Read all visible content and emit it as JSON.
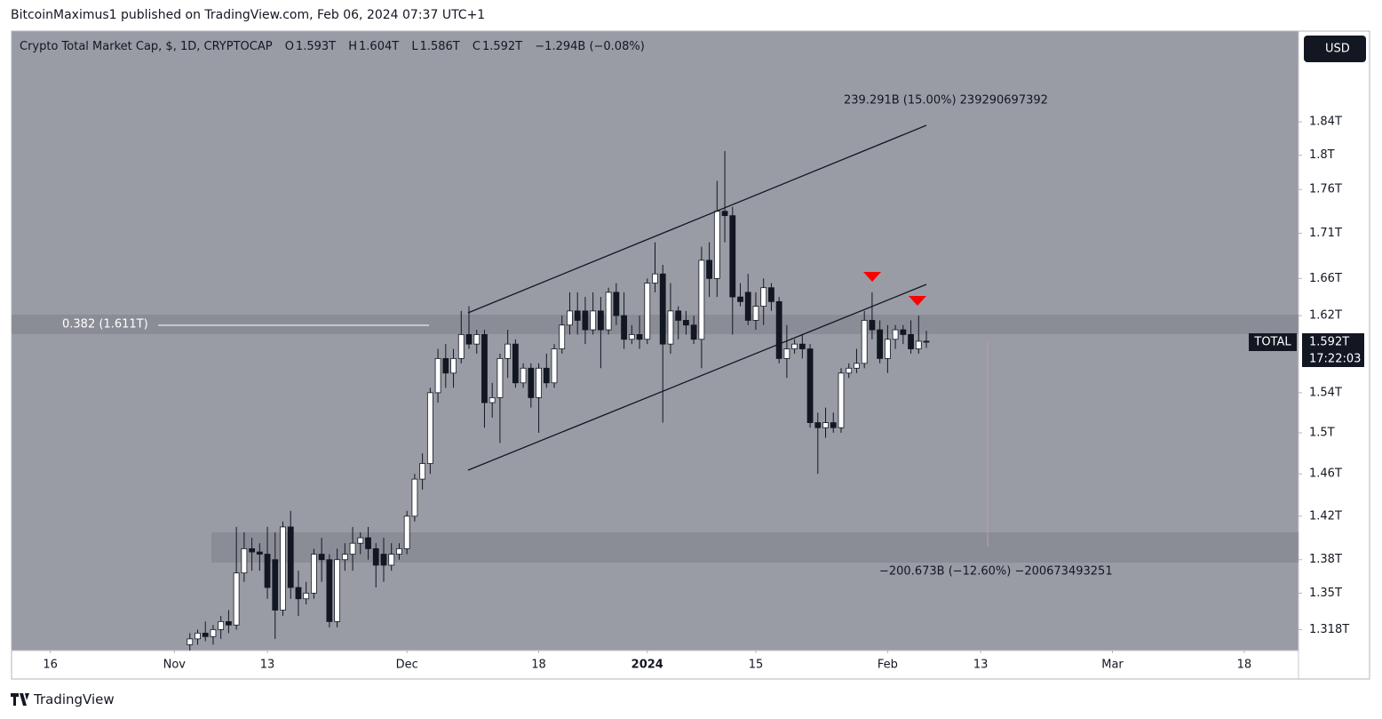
{
  "header": {
    "publisher": "BitcoinMaximus1 published on TradingView.com, Feb 06, 2024 07:37 UTC+1",
    "footer": "TradingView"
  },
  "chart_data": {
    "type": "candlestick",
    "legend": {
      "title": "Crypto Total Market Cap, $, 1D, CRYPTOCAP",
      "items": [
        {
          "label": "O",
          "value": "1.593T"
        },
        {
          "label": "H",
          "value": "1.604T"
        },
        {
          "label": "L",
          "value": "1.586T"
        },
        {
          "label": "C",
          "value": "1.592T"
        }
      ],
      "change": "−1.294B (−0.08%)"
    },
    "currency": "USD",
    "symbol_tag": "TOTAL",
    "countdown": "17:22:03",
    "annotations": [
      "239.291B (15.00%) 239290697392",
      "−200.673B (−12.60%) −200673493251",
      "0.382 (1.611T)"
    ],
    "up_color": "#ffffff",
    "down_color": "#131722",
    "log_scale": true,
    "grid": false,
    "xlim": [
      "2023-10-11",
      "2024-03-25"
    ],
    "xticks": [
      {
        "value": "2023-10-16",
        "label": "16"
      },
      {
        "value": "2023-11-01",
        "label": "Nov"
      },
      {
        "value": "2023-11-13",
        "label": "13"
      },
      {
        "value": "2023-12-01",
        "label": "Dec"
      },
      {
        "value": "2023-12-18",
        "label": "18"
      },
      {
        "value": "2024-01-01",
        "label": "2024"
      },
      {
        "value": "2024-01-15",
        "label": "15"
      },
      {
        "value": "2024-02-01",
        "label": "Feb"
      },
      {
        "value": "2024-02-13",
        "label": "13"
      },
      {
        "value": "2024-03-01",
        "label": "Mar"
      },
      {
        "value": "2024-03-18",
        "label": "18"
      }
    ],
    "ylim": [
      1.3,
      1.953
    ],
    "yticks": [
      {
        "value": 1.318,
        "label": "1.318T"
      },
      {
        "value": 1.35,
        "label": "1.35T"
      },
      {
        "value": 1.38,
        "label": "1.38T"
      },
      {
        "value": 1.42,
        "label": "1.42T"
      },
      {
        "value": 1.46,
        "label": "1.46T"
      },
      {
        "value": 1.5,
        "label": "1.5T"
      },
      {
        "value": 1.54,
        "label": "1.54T"
      },
      {
        "value": 1.62,
        "label": "1.62T"
      },
      {
        "value": 1.66,
        "label": "1.66T"
      },
      {
        "value": 1.71,
        "label": "1.71T"
      },
      {
        "value": 1.76,
        "label": "1.76T"
      },
      {
        "value": 1.8,
        "label": "1.8T"
      },
      {
        "value": 1.84,
        "label": "1.84T"
      }
    ],
    "x": [
      "2023-11-03",
      "2023-11-04",
      "2023-11-05",
      "2023-11-06",
      "2023-11-07",
      "2023-11-08",
      "2023-11-09",
      "2023-11-10",
      "2023-11-11",
      "2023-11-12",
      "2023-11-13",
      "2023-11-14",
      "2023-11-15",
      "2023-11-16",
      "2023-11-17",
      "2023-11-18",
      "2023-11-19",
      "2023-11-20",
      "2023-11-21",
      "2023-11-22",
      "2023-11-23",
      "2023-11-24",
      "2023-11-25",
      "2023-11-26",
      "2023-11-27",
      "2023-11-28",
      "2023-11-29",
      "2023-11-30",
      "2023-12-01",
      "2023-12-02",
      "2023-12-03",
      "2023-12-04",
      "2023-12-05",
      "2023-12-06",
      "2023-12-07",
      "2023-12-08",
      "2023-12-09",
      "2023-12-10",
      "2023-12-11",
      "2023-12-12",
      "2023-12-13",
      "2023-12-14",
      "2023-12-15",
      "2023-12-16",
      "2023-12-17",
      "2023-12-18",
      "2023-12-19",
      "2023-12-20",
      "2023-12-21",
      "2023-12-22",
      "2023-12-23",
      "2023-12-24",
      "2023-12-25",
      "2023-12-26",
      "2023-12-27",
      "2023-12-28",
      "2023-12-29",
      "2023-12-30",
      "2023-12-31",
      "2024-01-01",
      "2024-01-02",
      "2024-01-03",
      "2024-01-04",
      "2024-01-05",
      "2024-01-06",
      "2024-01-07",
      "2024-01-08",
      "2024-01-09",
      "2024-01-10",
      "2024-01-11",
      "2024-01-12",
      "2024-01-13",
      "2024-01-14",
      "2024-01-15",
      "2024-01-16",
      "2024-01-17",
      "2024-01-18",
      "2024-01-19",
      "2024-01-20",
      "2024-01-21",
      "2024-01-22",
      "2024-01-23",
      "2024-01-24",
      "2024-01-25",
      "2024-01-26",
      "2024-01-27",
      "2024-01-28",
      "2024-01-29",
      "2024-01-30",
      "2024-01-31",
      "2024-02-01",
      "2024-02-02",
      "2024-02-03",
      "2024-02-04",
      "2024-02-05",
      "2024-02-06"
    ],
    "open": [
      1.305,
      1.31,
      1.315,
      1.312,
      1.318,
      1.325,
      1.322,
      1.368,
      1.39,
      1.387,
      1.385,
      1.38,
      1.335,
      1.41,
      1.355,
      1.345,
      1.35,
      1.385,
      1.38,
      1.325,
      1.38,
      1.385,
      1.395,
      1.4,
      1.39,
      1.385,
      1.375,
      1.385,
      1.39,
      1.42,
      1.455,
      1.47,
      1.54,
      1.575,
      1.56,
      1.575,
      1.6,
      1.59,
      1.6,
      1.53,
      1.535,
      1.575,
      1.59,
      1.55,
      1.565,
      1.535,
      1.565,
      1.55,
      1.585,
      1.61,
      1.625,
      1.625,
      1.605,
      1.625,
      1.605,
      1.645,
      1.62,
      1.595,
      1.6,
      1.595,
      1.655,
      1.665,
      1.59,
      1.625,
      1.615,
      1.61,
      1.595,
      1.68,
      1.66,
      1.735,
      1.73,
      1.64,
      1.645,
      1.615,
      1.63,
      1.65,
      1.635,
      1.575,
      1.585,
      1.59,
      1.585,
      1.51,
      1.505,
      1.51,
      1.505,
      1.56,
      1.565,
      1.57,
      1.615,
      1.605,
      1.575,
      1.595,
      1.605,
      1.6,
      1.585,
      1.593
    ],
    "high": [
      1.315,
      1.318,
      1.325,
      1.322,
      1.33,
      1.335,
      1.41,
      1.405,
      1.4,
      1.395,
      1.41,
      1.405,
      1.415,
      1.425,
      1.37,
      1.36,
      1.39,
      1.4,
      1.385,
      1.39,
      1.395,
      1.41,
      1.405,
      1.41,
      1.395,
      1.4,
      1.395,
      1.395,
      1.425,
      1.46,
      1.48,
      1.545,
      1.585,
      1.59,
      1.585,
      1.625,
      1.63,
      1.605,
      1.605,
      1.55,
      1.58,
      1.605,
      1.595,
      1.57,
      1.57,
      1.57,
      1.58,
      1.59,
      1.62,
      1.645,
      1.645,
      1.64,
      1.645,
      1.64,
      1.65,
      1.655,
      1.645,
      1.61,
      1.62,
      1.66,
      1.7,
      1.675,
      1.655,
      1.63,
      1.625,
      1.62,
      1.695,
      1.7,
      1.77,
      1.805,
      1.74,
      1.655,
      1.665,
      1.645,
      1.66,
      1.655,
      1.64,
      1.61,
      1.595,
      1.6,
      1.59,
      1.52,
      1.525,
      1.52,
      1.565,
      1.57,
      1.585,
      1.625,
      1.645,
      1.615,
      1.61,
      1.61,
      1.61,
      1.615,
      1.62,
      1.604
    ],
    "low": [
      1.298,
      1.305,
      1.308,
      1.305,
      1.31,
      1.315,
      1.318,
      1.36,
      1.37,
      1.37,
      1.345,
      1.31,
      1.33,
      1.345,
      1.33,
      1.34,
      1.345,
      1.36,
      1.32,
      1.32,
      1.37,
      1.37,
      1.385,
      1.38,
      1.355,
      1.36,
      1.37,
      1.38,
      1.385,
      1.415,
      1.445,
      1.46,
      1.53,
      1.545,
      1.545,
      1.57,
      1.585,
      1.58,
      1.505,
      1.515,
      1.49,
      1.555,
      1.545,
      1.545,
      1.525,
      1.5,
      1.545,
      1.545,
      1.58,
      1.6,
      1.6,
      1.59,
      1.6,
      1.565,
      1.6,
      1.61,
      1.585,
      1.59,
      1.585,
      1.59,
      1.645,
      1.51,
      1.58,
      1.595,
      1.6,
      1.59,
      1.565,
      1.64,
      1.64,
      1.7,
      1.6,
      1.63,
      1.61,
      1.605,
      1.61,
      1.625,
      1.57,
      1.555,
      1.58,
      1.575,
      1.505,
      1.46,
      1.495,
      1.5,
      1.5,
      1.555,
      1.56,
      1.565,
      1.595,
      1.57,
      1.56,
      1.585,
      1.59,
      1.58,
      1.58,
      1.586
    ],
    "close": [
      1.31,
      1.315,
      1.312,
      1.318,
      1.325,
      1.322,
      1.368,
      1.39,
      1.387,
      1.385,
      1.355,
      1.335,
      1.41,
      1.355,
      1.345,
      1.35,
      1.385,
      1.38,
      1.325,
      1.38,
      1.385,
      1.395,
      1.4,
      1.39,
      1.375,
      1.375,
      1.385,
      1.39,
      1.42,
      1.455,
      1.47,
      1.54,
      1.575,
      1.56,
      1.575,
      1.6,
      1.59,
      1.6,
      1.53,
      1.535,
      1.575,
      1.59,
      1.55,
      1.565,
      1.535,
      1.565,
      1.55,
      1.585,
      1.61,
      1.625,
      1.615,
      1.605,
      1.625,
      1.605,
      1.645,
      1.62,
      1.595,
      1.6,
      1.595,
      1.655,
      1.665,
      1.59,
      1.625,
      1.615,
      1.61,
      1.595,
      1.68,
      1.66,
      1.735,
      1.73,
      1.64,
      1.635,
      1.615,
      1.63,
      1.65,
      1.635,
      1.575,
      1.585,
      1.59,
      1.585,
      1.51,
      1.505,
      1.51,
      1.505,
      1.56,
      1.565,
      1.57,
      1.615,
      1.605,
      1.575,
      1.595,
      1.605,
      1.6,
      1.585,
      1.593,
      1.592
    ]
  }
}
